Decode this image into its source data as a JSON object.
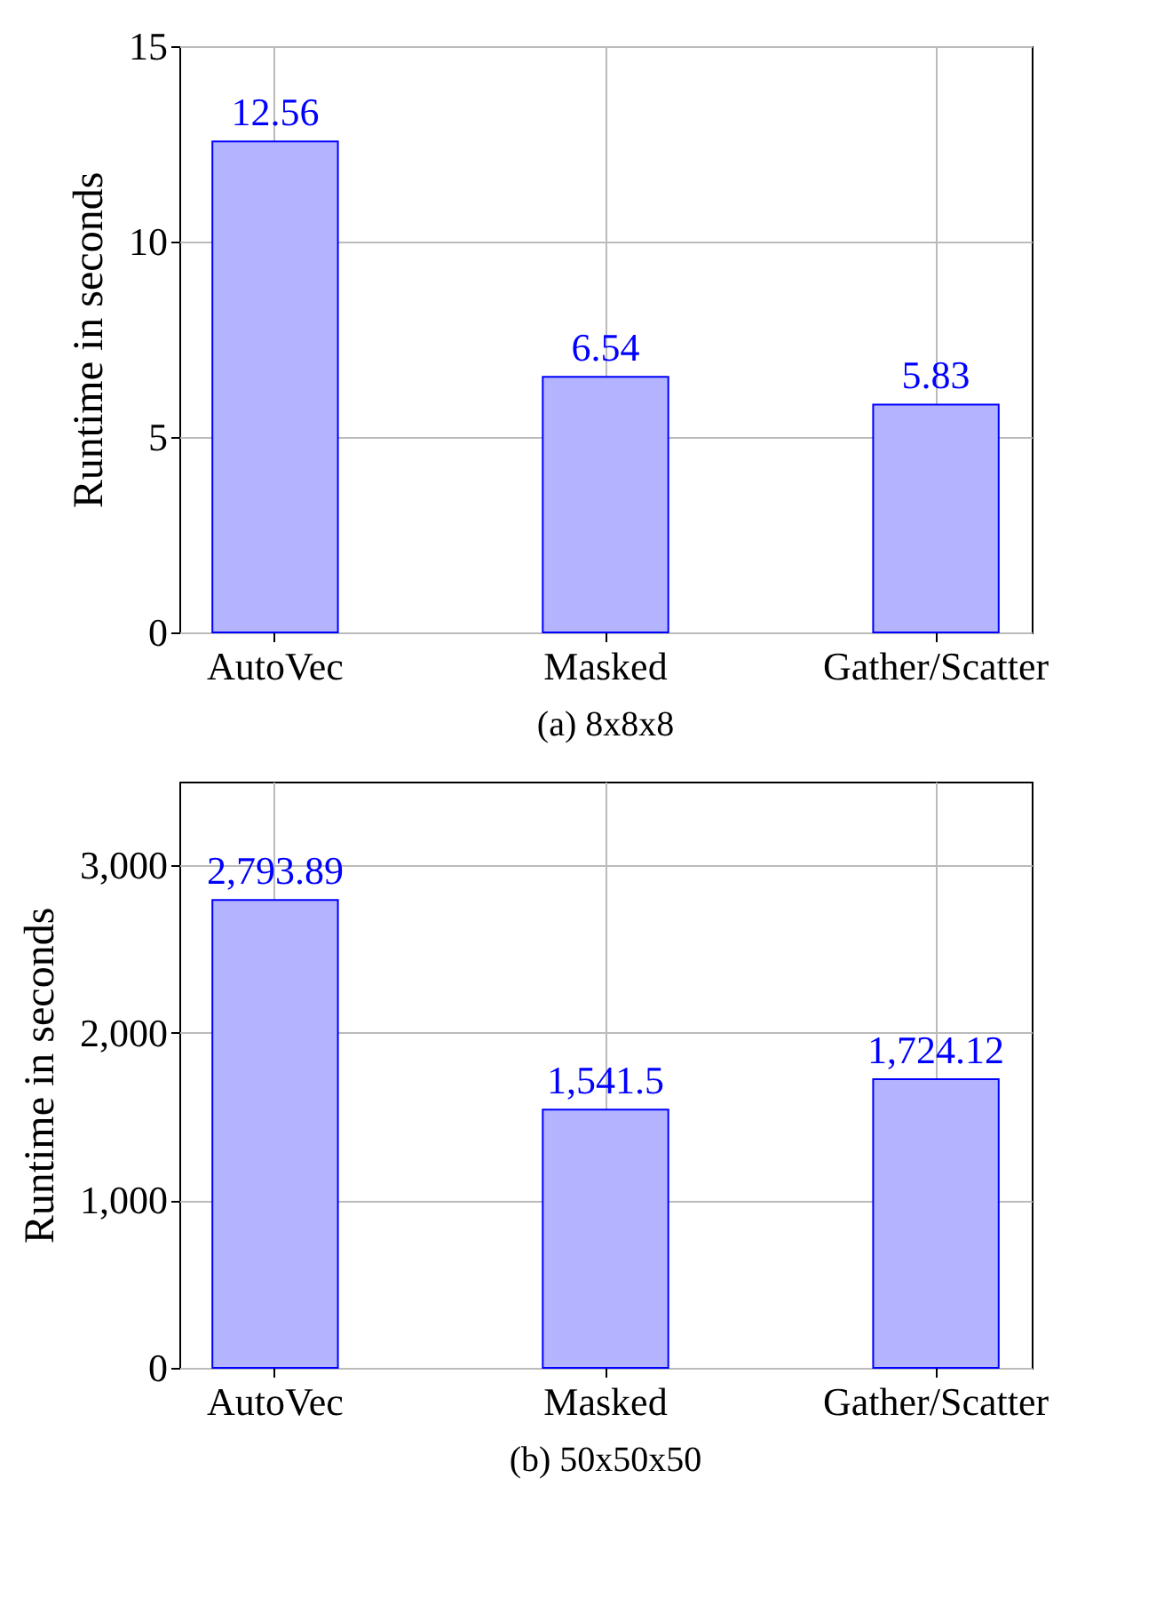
{
  "chart_data": [
    {
      "type": "bar",
      "ylabel": "Runtime in seconds",
      "categories": [
        "AutoVec",
        "Masked",
        "Gather/Scatter"
      ],
      "series": [
        {
          "color": "#b3b3ff",
          "values": [
            12.56,
            6.54,
            5.83
          ],
          "value_labels": [
            "12.56",
            "6.54",
            "5.83"
          ]
        }
      ],
      "ylim": [
        0,
        15
      ],
      "yticks": [
        0,
        5,
        10,
        15
      ],
      "grid": true,
      "annotations": [
        "(a) 8x8x8"
      ]
    },
    {
      "type": "bar",
      "ylabel": "Runtime in seconds",
      "categories": [
        "AutoVec",
        "Masked",
        "Gather/Scatter"
      ],
      "series": [
        {
          "color": "#b3b3ff",
          "values": [
            2793.89,
            1541.5,
            1724.12
          ],
          "value_labels": [
            "2,793.89",
            "1,541.5",
            "1,724.12"
          ]
        }
      ],
      "ylim": [
        0,
        3500
      ],
      "yticks": [
        0,
        {
          "value": 1000,
          "label": "1,000"
        },
        {
          "value": 2000,
          "label": "2,000"
        },
        {
          "value": 3000,
          "label": "3,000"
        }
      ],
      "grid": true,
      "annotations": [
        "(b) 50x50x50"
      ]
    }
  ]
}
